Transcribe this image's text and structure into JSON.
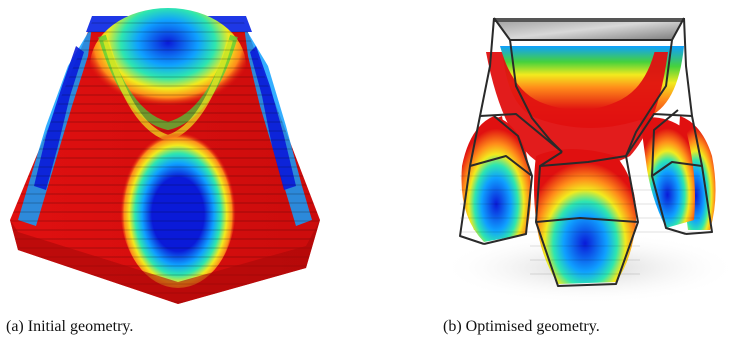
{
  "figure": {
    "panels": [
      {
        "caption": "(a) Initial geometry.",
        "content": "voxel render of truncated pyramid colored by heat map"
      },
      {
        "caption": "(b) Optimised geometry.",
        "content": "voxel render of four-legged stool with wireframe cage and top plate"
      }
    ],
    "colormap": [
      "#0a1ad8",
      "#0fa0ff",
      "#18e0b0",
      "#46d23c",
      "#f2ea1e",
      "#ff8c1a",
      "#e01010"
    ]
  }
}
